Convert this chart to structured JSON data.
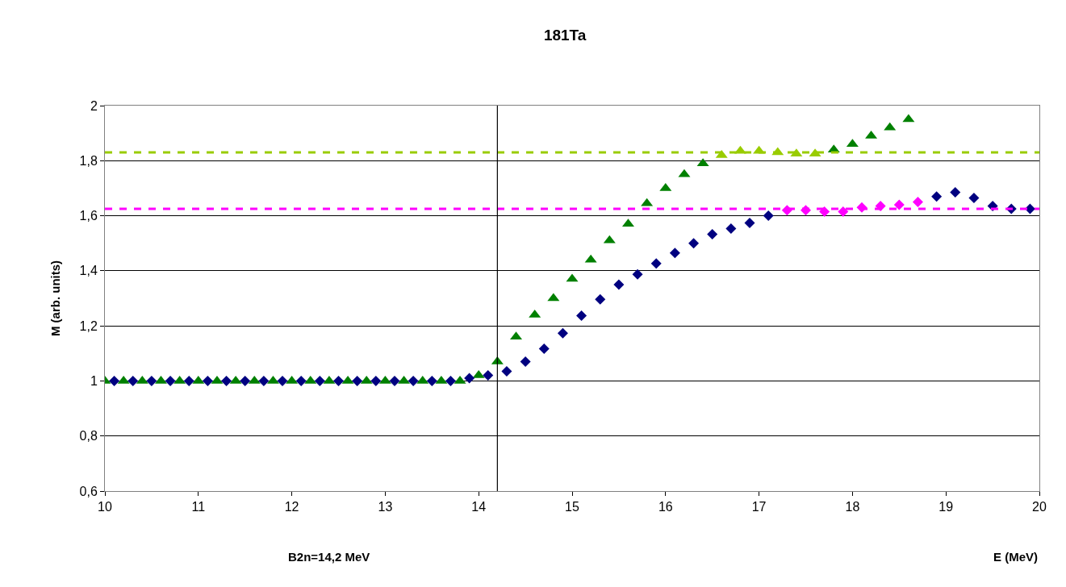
{
  "chart_data": {
    "type": "scatter",
    "title": "181Ta",
    "xlabel": "E (MeV)",
    "ylabel": "M (arb. units)",
    "xlim": [
      10,
      20
    ],
    "xticks": [
      10,
      11,
      12,
      13,
      14,
      15,
      16,
      17,
      18,
      19,
      20
    ],
    "ylim": [
      0.6,
      2
    ],
    "yticks": [
      {
        "value": 0.6,
        "label": "0,6"
      },
      {
        "value": 0.8,
        "label": "0,8"
      },
      {
        "value": 1,
        "label": "1"
      },
      {
        "value": 1.2,
        "label": "1,2"
      },
      {
        "value": 1.4,
        "label": "1,4"
      },
      {
        "value": 1.6,
        "label": "1,6"
      },
      {
        "value": 1.8,
        "label": "1,8"
      },
      {
        "value": 2,
        "label": "2"
      }
    ],
    "grid": "y",
    "series": [
      {
        "color": "#008000",
        "marker": "triangle",
        "x": [
          10.0,
          10.2,
          10.4,
          10.6,
          10.8,
          11.0,
          11.2,
          11.4,
          11.6,
          11.8,
          12.0,
          12.2,
          12.4,
          12.6,
          12.8,
          13.0,
          13.2,
          13.4,
          13.6,
          13.8,
          14.0,
          14.2,
          14.4,
          14.6,
          14.8,
          15.0,
          15.2,
          15.4,
          15.6,
          15.8,
          16.0,
          16.2,
          16.4,
          17.8,
          18.0,
          18.2,
          18.4,
          18.6
        ],
        "values": [
          1,
          1,
          1,
          1,
          1,
          1,
          1,
          1,
          1,
          1,
          1,
          1,
          1,
          1,
          1,
          1,
          1,
          1,
          1,
          1,
          1.02,
          1.07,
          1.16,
          1.24,
          1.3,
          1.37,
          1.44,
          1.51,
          1.57,
          1.645,
          1.7,
          1.75,
          1.79,
          1.84,
          1.86,
          1.89,
          1.92,
          1.95
        ]
      },
      {
        "color": "#99cc00",
        "marker": "triangle",
        "x": [
          16.6,
          16.8,
          17.0,
          17.2,
          17.4,
          17.6
        ],
        "values": [
          1.82,
          1.835,
          1.835,
          1.83,
          1.825,
          1.825
        ]
      },
      {
        "color": "#000080",
        "marker": "diamond",
        "x": [
          10.1,
          10.3,
          10.5,
          10.7,
          10.9,
          11.1,
          11.3,
          11.5,
          11.7,
          11.9,
          12.1,
          12.3,
          12.5,
          12.7,
          12.9,
          13.1,
          13.3,
          13.5,
          13.7,
          13.9,
          14.1,
          14.3,
          14.5,
          14.7,
          14.9,
          15.1,
          15.3,
          15.5,
          15.7,
          15.9,
          16.1,
          16.3,
          16.5,
          16.7,
          16.9,
          17.1,
          18.9,
          19.1,
          19.3,
          19.5,
          19.7,
          19.9
        ],
        "values": [
          1,
          1,
          1,
          1,
          1,
          1,
          1,
          1,
          1,
          1,
          1,
          1,
          1,
          1,
          1,
          1,
          1,
          1,
          1,
          1.01,
          1.02,
          1.035,
          1.07,
          1.117,
          1.173,
          1.237,
          1.296,
          1.35,
          1.387,
          1.427,
          1.465,
          1.5,
          1.533,
          1.553,
          1.574,
          1.6,
          1.67,
          1.685,
          1.665,
          1.635,
          1.625,
          1.625
        ]
      },
      {
        "color": "#ff00ff",
        "marker": "diamond",
        "x": [
          17.3,
          17.5,
          17.7,
          17.9,
          18.1,
          18.3,
          18.5,
          18.7
        ],
        "values": [
          1.62,
          1.62,
          1.615,
          1.615,
          1.63,
          1.635,
          1.64,
          1.65
        ]
      }
    ],
    "ref_lines": [
      {
        "axis": "y",
        "value": 1.83,
        "color": "#99cc00",
        "line_style": "dashed"
      },
      {
        "axis": "y",
        "value": 1.625,
        "color": "#ff00ff",
        "line_style": "dashed"
      },
      {
        "axis": "x",
        "value": 14.2,
        "color": "#000000",
        "line_style": "solid"
      }
    ],
    "annotations": [
      "B2n=14,2 MeV"
    ]
  }
}
